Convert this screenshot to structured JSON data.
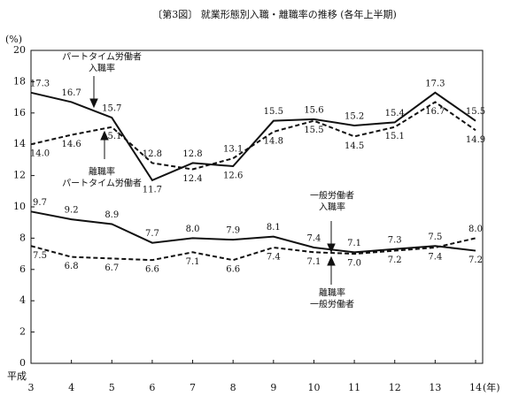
{
  "chart_data": {
    "type": "line",
    "title": "〔第3図〕 就業形態別入職・離職率の推移 (各年上半期)",
    "y_label": "(%)",
    "x_prefix": "平成",
    "x_suffix": "(年)",
    "categories": [
      "3",
      "4",
      "5",
      "6",
      "7",
      "8",
      "9",
      "10",
      "11",
      "12",
      "13",
      "14"
    ],
    "ylim": [
      0,
      20
    ],
    "yticks": [
      0,
      2,
      4,
      6,
      8,
      10,
      12,
      14,
      16,
      18,
      20
    ],
    "series": [
      {
        "name": [
          "パートタイム労働者",
          "入職率"
        ],
        "color": "#111111",
        "dash": false,
        "values": [
          17.3,
          16.7,
          15.7,
          11.7,
          12.8,
          12.6,
          15.5,
          15.6,
          15.2,
          15.4,
          17.3,
          15.5
        ],
        "value_labels": [
          "17.3",
          "16.7",
          "15.7",
          "11.7",
          "12.8",
          "12.6",
          "15.5",
          "15.6",
          "15.2",
          "15.4",
          "17.3",
          "15.5"
        ]
      },
      {
        "name": [
          "離職率",
          "パートタイム労働者"
        ],
        "color": "#111111",
        "dash": true,
        "values": [
          14.0,
          14.6,
          15.1,
          12.8,
          12.4,
          13.1,
          14.8,
          15.5,
          14.5,
          15.1,
          16.7,
          14.9
        ],
        "value_labels": [
          "14.0",
          "14.6",
          "15.1",
          "12.8",
          "12.4",
          "13.1",
          "14.8",
          "15.5",
          "14.5",
          "15.1",
          "16.7",
          "14.9"
        ]
      },
      {
        "name": [
          "一般労働者",
          "入職率"
        ],
        "color": "#111111",
        "dash": false,
        "values": [
          9.7,
          9.2,
          8.9,
          7.7,
          8.0,
          7.9,
          8.1,
          7.4,
          7.1,
          7.3,
          7.5,
          7.2
        ],
        "value_labels": [
          "9.7",
          "9.2",
          "8.9",
          "7.7",
          "8.0",
          "7.9",
          "8.1",
          "7.4",
          "7.1",
          "7.3",
          "7.5",
          "7.2"
        ]
      },
      {
        "name": [
          "離職率",
          "一般労働者"
        ],
        "color": "#111111",
        "dash": true,
        "values": [
          7.5,
          6.8,
          6.7,
          6.6,
          7.1,
          6.6,
          7.4,
          7.1,
          7.0,
          7.2,
          7.4,
          8.0
        ],
        "value_labels": [
          "7.5",
          "6.8",
          "6.7",
          "6.6",
          "7.1",
          "6.6",
          "7.4",
          "7.1",
          "7.0",
          "7.2",
          "7.4",
          "8.0"
        ]
      }
    ]
  }
}
